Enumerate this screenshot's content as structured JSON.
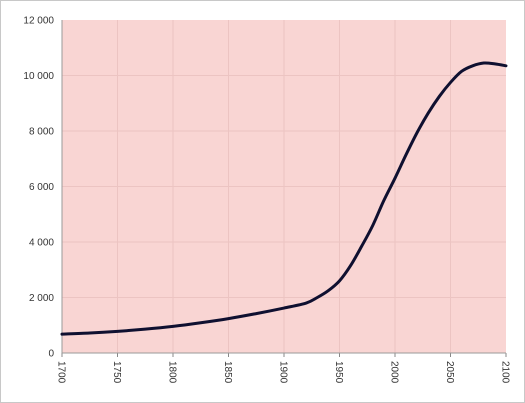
{
  "chart_data": {
    "type": "line",
    "title": "",
    "xlabel": "",
    "ylabel": "",
    "xlim": [
      1700,
      2100
    ],
    "ylim": [
      0,
      12000
    ],
    "x_ticks": [
      "1700",
      "1750",
      "1800",
      "1850",
      "1900",
      "1950",
      "2000",
      "2050",
      "2100"
    ],
    "y_ticks": [
      "0",
      "2 000",
      "4 000",
      "6 000",
      "8 000",
      "10 000",
      "12 000"
    ],
    "grid": true,
    "legend": "none",
    "colors": {
      "plot_background": "#f9d5d3",
      "line": "#0f1030",
      "grid": "#ecc4c2"
    },
    "series": [
      {
        "x": [
          1700,
          1725,
          1750,
          1775,
          1800,
          1825,
          1850,
          1875,
          1900,
          1920,
          1930,
          1940,
          1950,
          1960,
          1970,
          1980,
          1990,
          2000,
          2010,
          2020,
          2030,
          2040,
          2050,
          2060,
          2070,
          2080,
          2090,
          2100
        ],
        "y": [
          680,
          720,
          780,
          860,
          960,
          1090,
          1240,
          1420,
          1620,
          1800,
          2000,
          2250,
          2600,
          3150,
          3850,
          4600,
          5500,
          6300,
          7150,
          7950,
          8650,
          9250,
          9750,
          10150,
          10350,
          10450,
          10420,
          10350
        ]
      }
    ]
  }
}
